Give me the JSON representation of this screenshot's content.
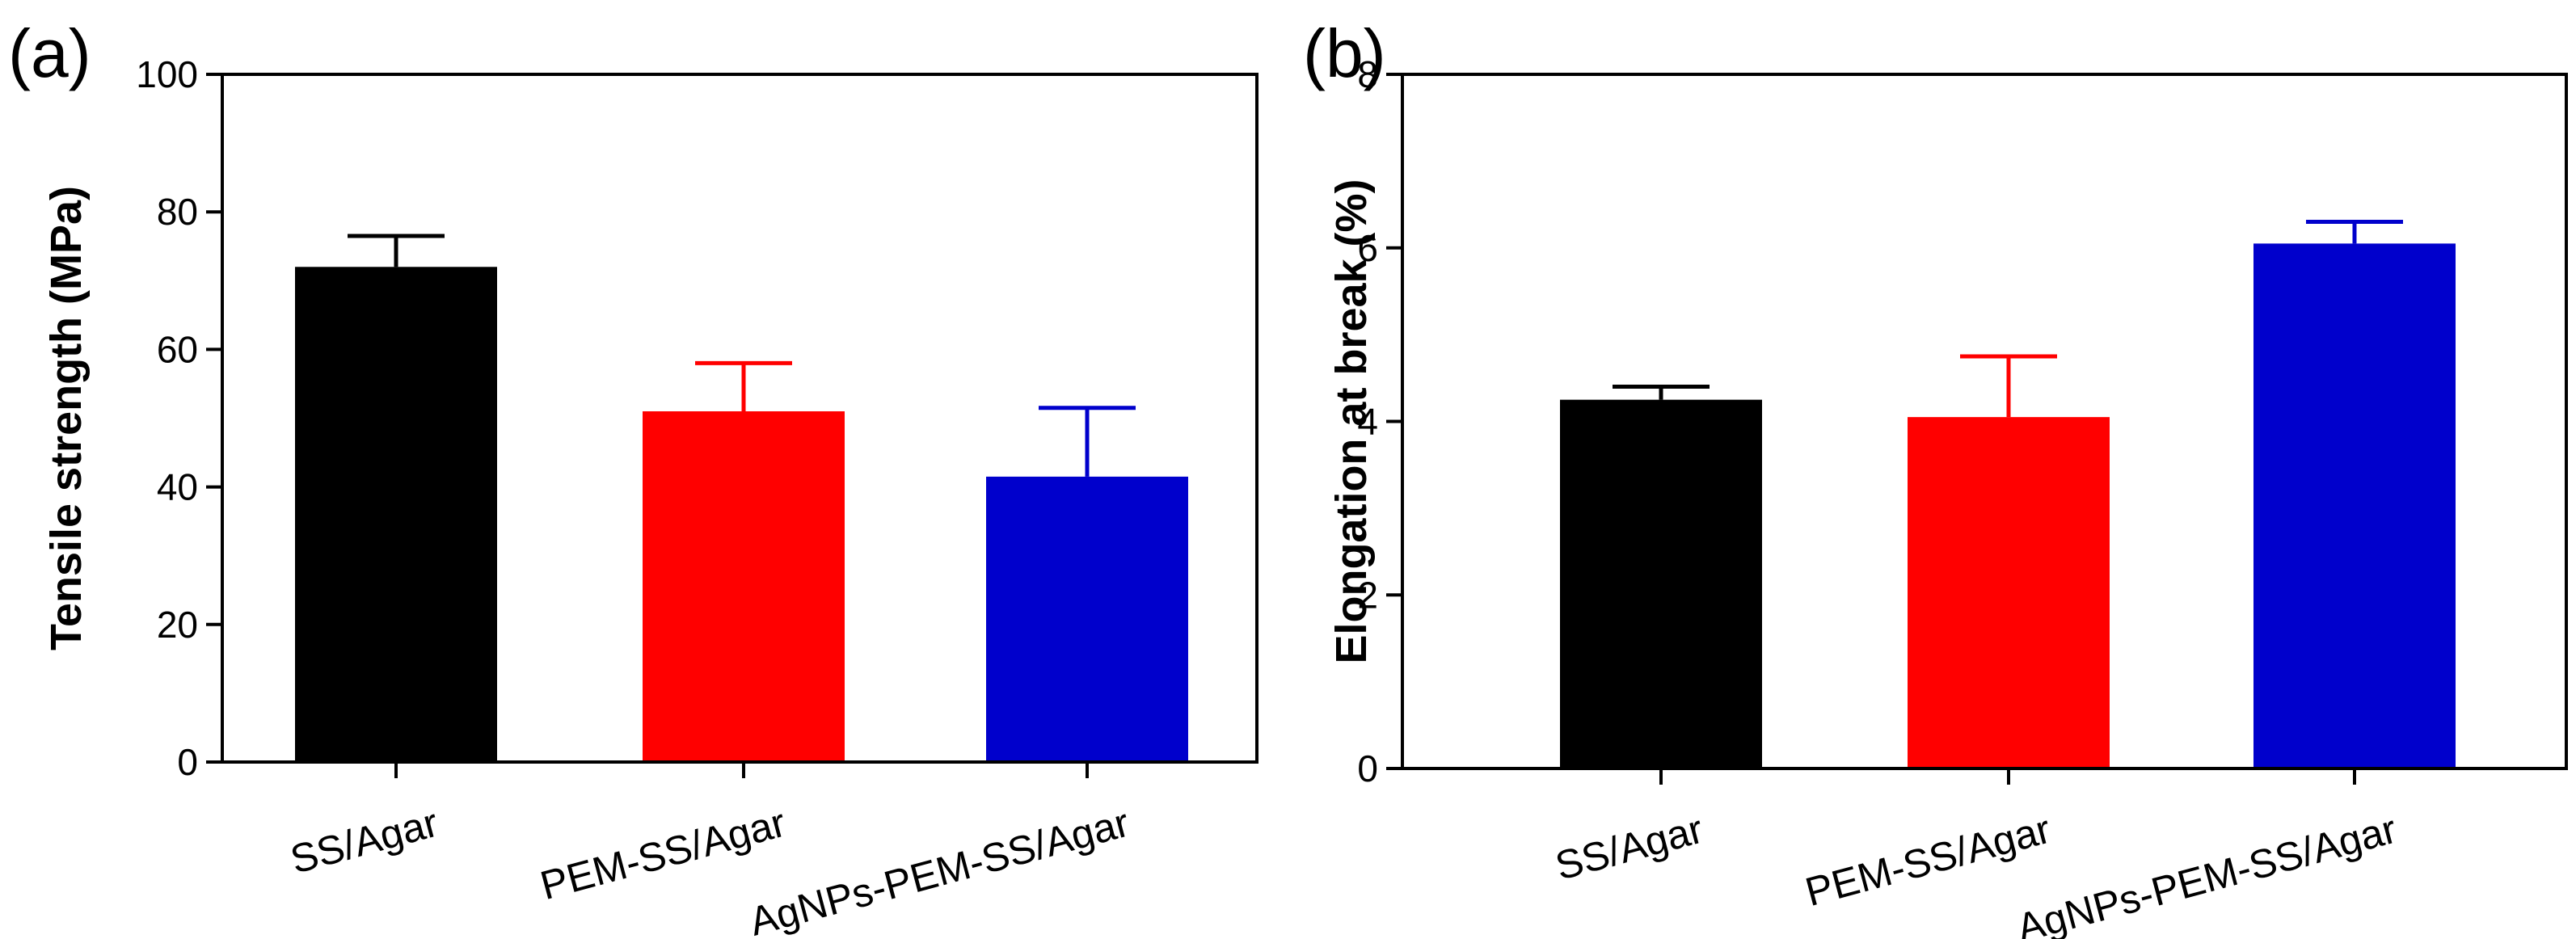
{
  "chart_data": [
    {
      "panel_label": "(a)",
      "type": "bar",
      "title": "",
      "xlabel": "",
      "ylabel": "Tensile strength (MPa)",
      "categories": [
        "SS/Agar",
        "PEM-SS/Agar",
        "AgNPs-PEM-SS/Agar"
      ],
      "values": [
        72,
        51,
        41.5
      ],
      "errors": [
        4.5,
        7,
        10
      ],
      "colors": [
        "#000000",
        "#ff0000",
        "#0000cc"
      ],
      "ylim": [
        0,
        100
      ],
      "yticks": [
        0,
        20,
        40,
        60,
        80,
        100
      ],
      "ytick_labels": [
        "0",
        "20",
        "40",
        "60",
        "80",
        "100"
      ],
      "grid": false,
      "legend": "none"
    },
    {
      "panel_label": "(b)",
      "type": "bar",
      "title": "",
      "xlabel": "",
      "ylabel": "Elongation at break (%)",
      "categories": [
        "SS/Agar",
        "PEM-SS/Agar",
        "AgNPs-PEM-SS/Agar"
      ],
      "values": [
        4.25,
        4.05,
        6.05
      ],
      "errors": [
        0.15,
        0.7,
        0.25
      ],
      "colors": [
        "#000000",
        "#ff0000",
        "#0000cc"
      ],
      "ylim": [
        0,
        8
      ],
      "yticks": [
        0,
        2,
        4,
        6,
        8
      ],
      "ytick_labels": [
        "0",
        "2",
        "4",
        "6",
        "8"
      ],
      "grid": false,
      "legend": "none"
    }
  ]
}
